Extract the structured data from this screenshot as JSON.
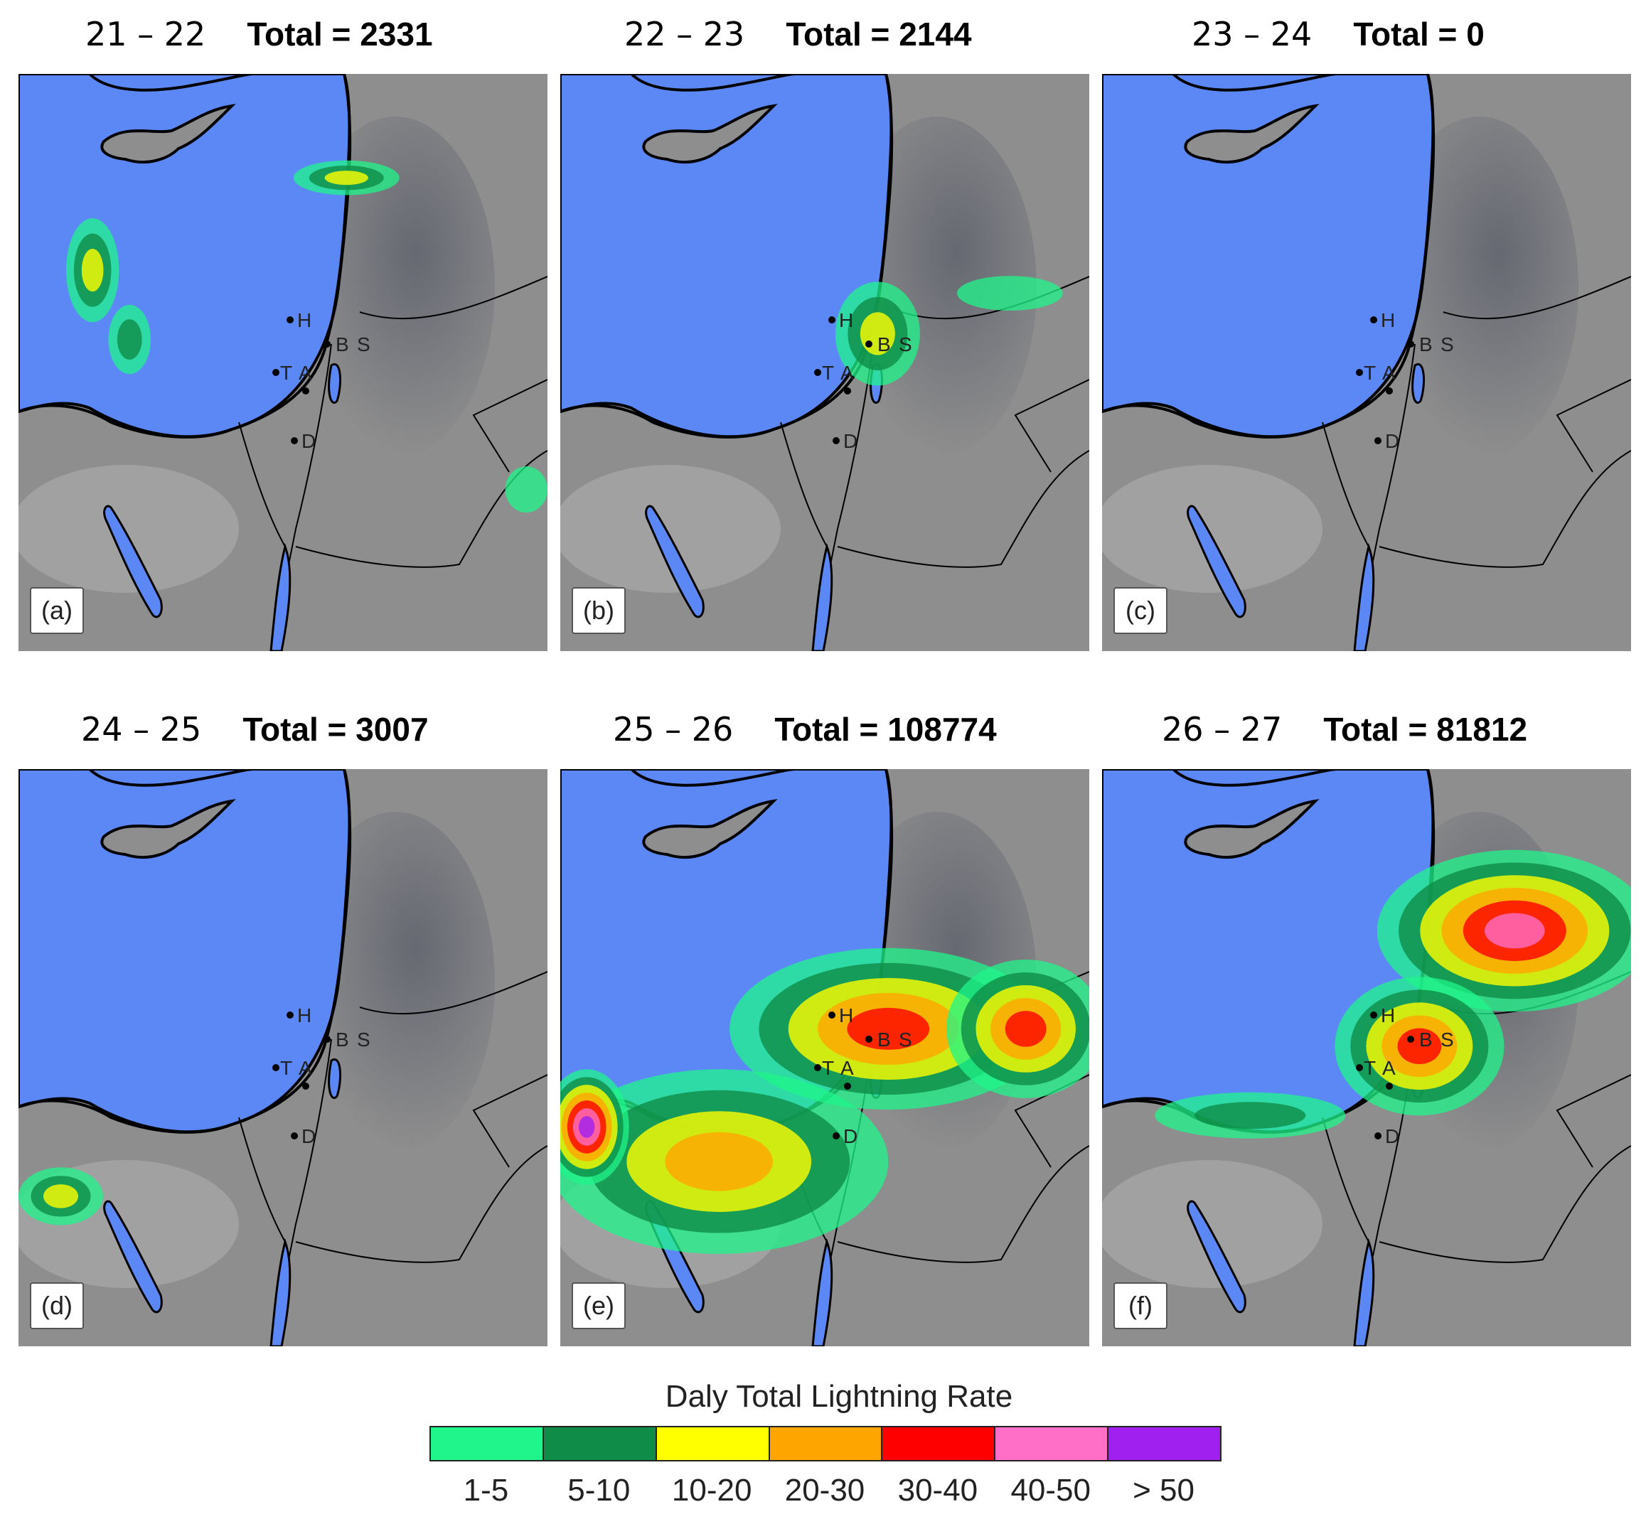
{
  "panels": [
    {
      "period": "21 – 22",
      "total": "Total = 2331",
      "label": "(a)"
    },
    {
      "period": "22 – 23",
      "total": "Total = 2144",
      "label": "(b)"
    },
    {
      "period": "23 – 24",
      "total": "Total = 0",
      "label": "(c)"
    },
    {
      "period": "24 – 25",
      "total": "Total = 3007",
      "label": "(d)"
    },
    {
      "period": "25 – 26",
      "total": "Total = 108774",
      "label": "(e)"
    },
    {
      "period": "26 – 27",
      "total": "Total = 81812",
      "label": "(f)"
    }
  ],
  "map_labels": {
    "h": "H",
    "b": "B",
    "s": "S",
    "t": "T",
    "a": "A",
    "d": "D"
  },
  "legend": {
    "title": "Daly Total Lightning Rate",
    "bins": [
      {
        "label": "1-5",
        "color": "#1ff58a"
      },
      {
        "label": "5-10",
        "color": "#0f8c47"
      },
      {
        "label": "10-20",
        "color": "#ffff00"
      },
      {
        "label": "20-30",
        "color": "#ffa500"
      },
      {
        "label": "30-40",
        "color": "#ff0000"
      },
      {
        "label": "40-50",
        "color": "#ff6ec7"
      },
      {
        "label": "> 50",
        "color": "#a020f0"
      }
    ]
  },
  "colors": {
    "sea": "#5b88f5",
    "land": "#8e8e8e",
    "terrain_dark": "#5c5f6b",
    "terrain_light": "#b4b4b4"
  }
}
